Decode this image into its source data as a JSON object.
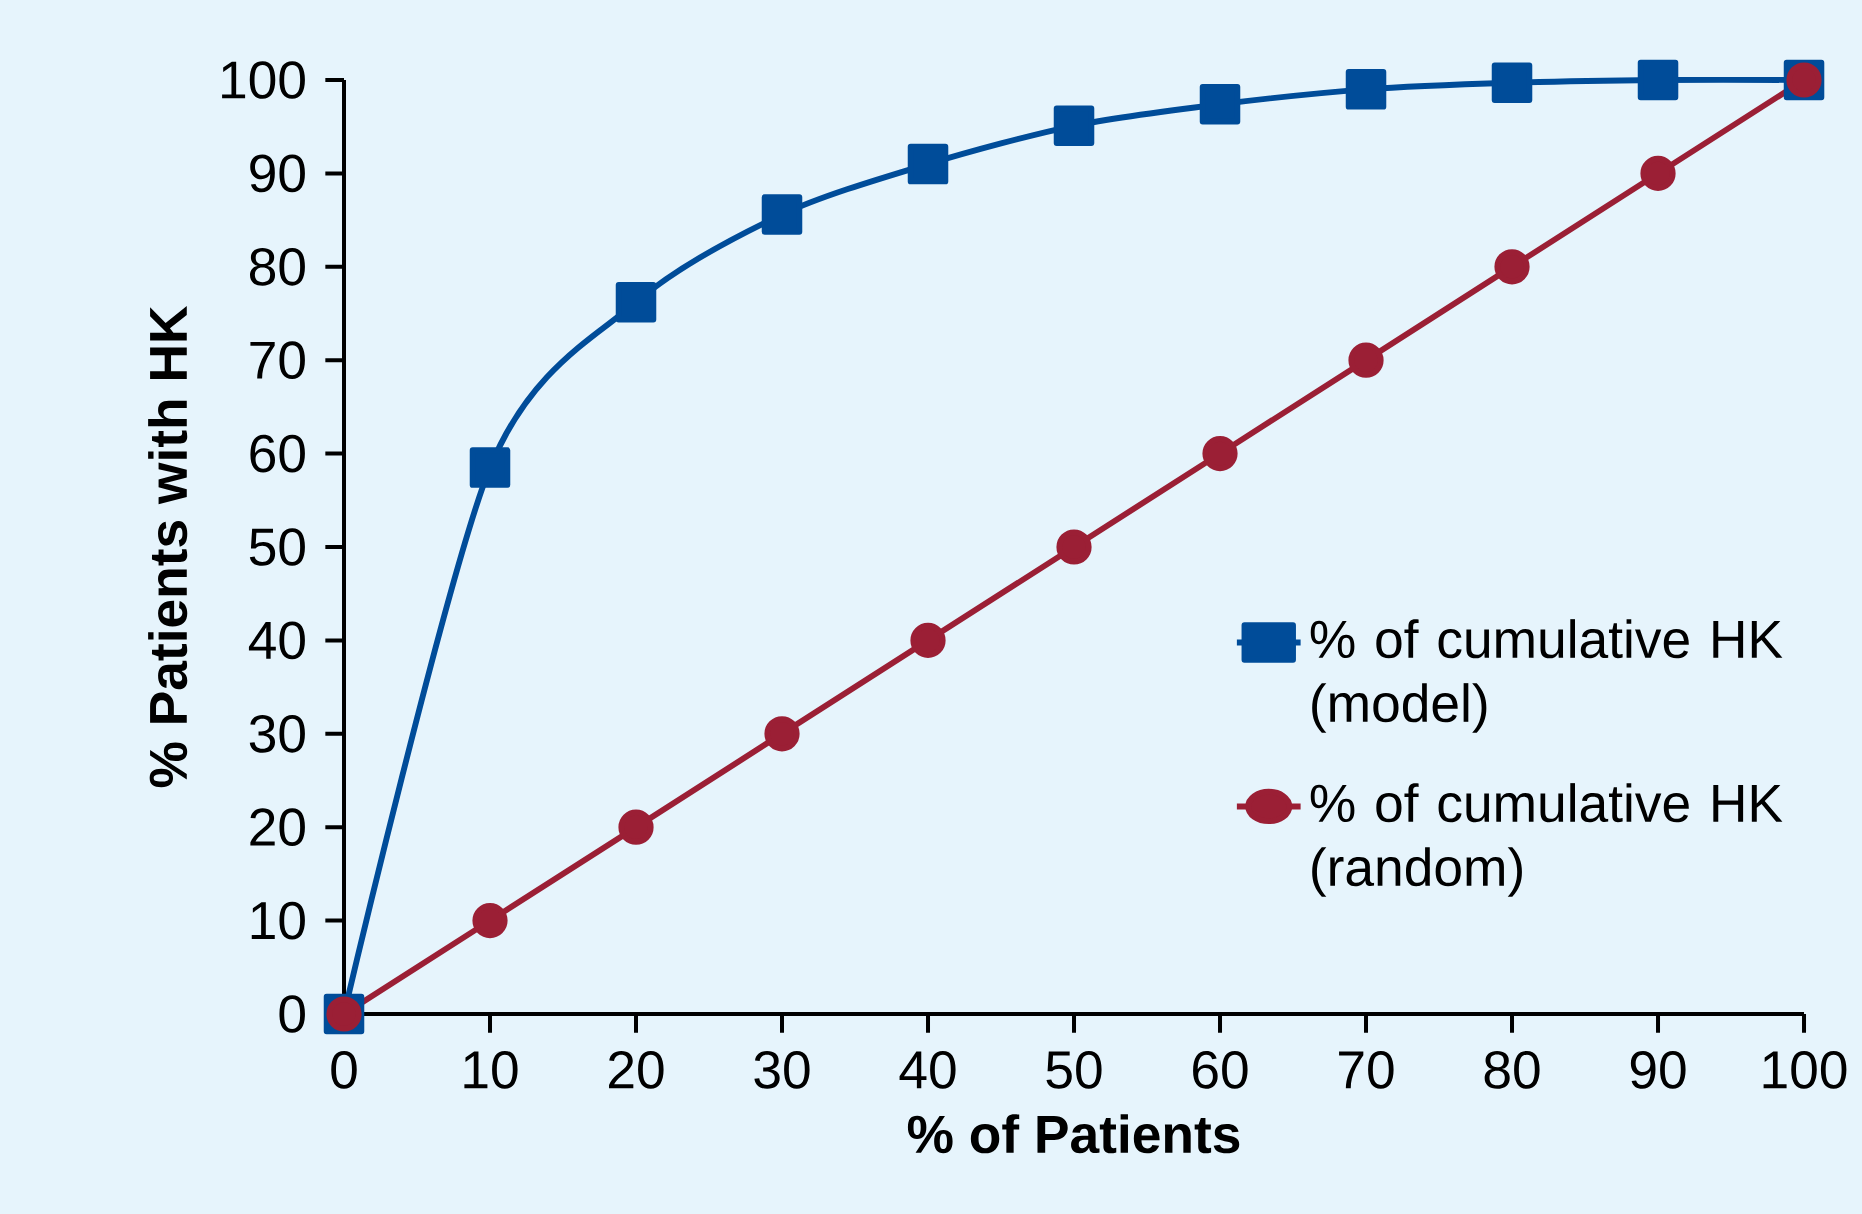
{
  "chart_data": {
    "type": "line",
    "xlabel": "% of Patients",
    "ylabel": "% Patients with HK",
    "x": [
      0,
      10,
      20,
      30,
      40,
      50,
      60,
      70,
      80,
      90,
      100
    ],
    "series": [
      {
        "name": "% of cumulative HK (model)",
        "color": "#004c99",
        "marker": "square",
        "values": [
          0,
          58.5,
          76.2,
          85.6,
          91.0,
          95.1,
          97.4,
          99.0,
          99.7,
          100,
          100
        ]
      },
      {
        "name": "% of cumulative HK (random)",
        "color": "#9b1f35",
        "marker": "circle",
        "values": [
          0,
          10,
          20,
          30,
          40,
          50,
          60,
          70,
          80,
          90,
          100
        ]
      }
    ],
    "xlim": [
      0,
      100
    ],
    "ylim": [
      0,
      100
    ],
    "xticks": [
      0,
      10,
      20,
      30,
      40,
      50,
      60,
      70,
      80,
      90,
      100
    ],
    "yticks": [
      0,
      10,
      20,
      30,
      40,
      50,
      60,
      70,
      80,
      90,
      100
    ],
    "grid": false,
    "legend": "right"
  }
}
